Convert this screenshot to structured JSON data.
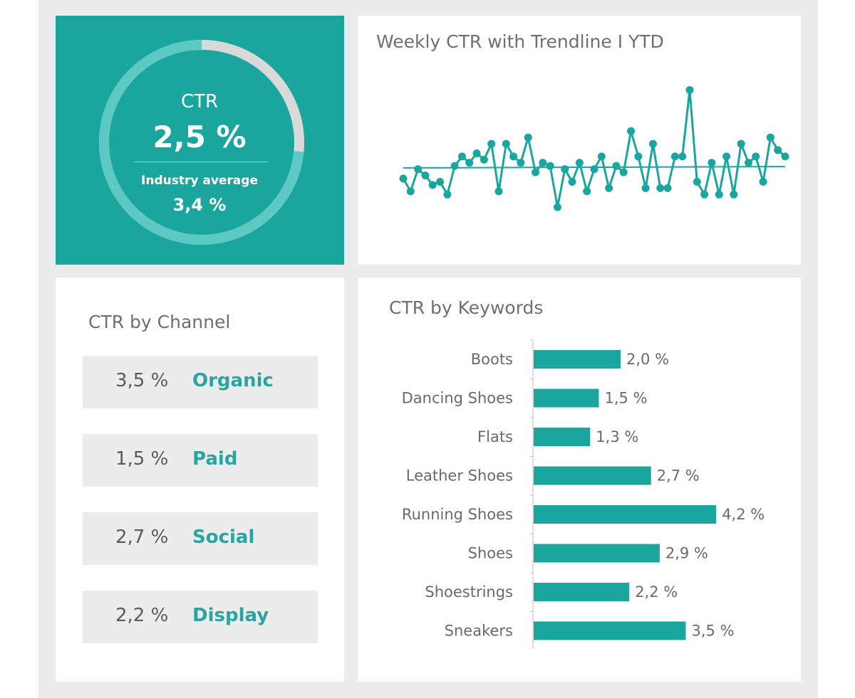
{
  "colors": {
    "accent": "#1aa69f",
    "ring_remainder": "#d9d9d9",
    "ring_fill": "#5cc9c2"
  },
  "kpi": {
    "label": "CTR",
    "value": "2,5 %",
    "avg_label": "Industry average",
    "avg_value": "3,4 %",
    "ring_fraction": 0.735
  },
  "trend": {
    "title": "Weekly CTR with Trendline I YTD"
  },
  "channels": {
    "title": "CTR by Channel",
    "items": [
      {
        "value": "3,5 %",
        "name": "Organic"
      },
      {
        "value": "1,5 %",
        "name": "Paid"
      },
      {
        "value": "2,7 %",
        "name": "Social"
      },
      {
        "value": "2,2 %",
        "name": "Display"
      }
    ]
  },
  "keywords": {
    "title": "CTR by Keywords"
  },
  "chart_data": [
    {
      "type": "line",
      "title": "Weekly CTR with Trendline I YTD",
      "grid": false,
      "series": [
        {
          "values": [
            2.55,
            2.35,
            2.7,
            2.6,
            2.45,
            2.5,
            2.3,
            2.75,
            2.9,
            2.8,
            2.95,
            2.85,
            3.1,
            2.35,
            3.1,
            2.9,
            2.8,
            3.2,
            2.65,
            2.8,
            2.75,
            2.1,
            2.7,
            2.5,
            2.8,
            2.35,
            2.7,
            2.9,
            2.4,
            2.75,
            2.65,
            3.3,
            2.9,
            2.4,
            3.1,
            2.4,
            2.4,
            2.9,
            2.9,
            3.95,
            2.5,
            2.3,
            2.8,
            2.3,
            2.9,
            2.3,
            3.1,
            2.8,
            2.9,
            2.5,
            3.2,
            3.0,
            2.9
          ]
        }
      ],
      "trendline": [
        2.72,
        2.74
      ]
    },
    {
      "type": "bar",
      "orientation": "horizontal",
      "title": "CTR by Keywords",
      "categories": [
        "Boots",
        "Dancing Shoes",
        "Flats",
        "Leather Shoes",
        "Running Shoes",
        "Shoes",
        "Shoestrings",
        "Sneakers"
      ],
      "values": [
        2.0,
        1.5,
        1.3,
        2.7,
        4.2,
        2.9,
        2.2,
        3.5
      ],
      "labels": [
        "2,0 %",
        "1,5 %",
        "1,3 %",
        "2,7 %",
        "4,2 %",
        "2,9 %",
        "2,2 %",
        "3,5 %"
      ],
      "xlim": [
        0,
        4.2
      ]
    }
  ]
}
